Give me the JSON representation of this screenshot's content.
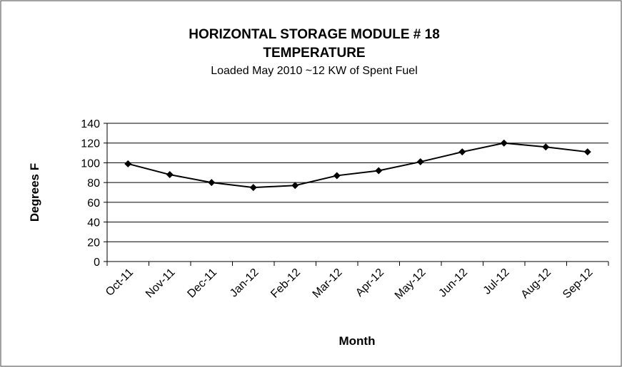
{
  "chart_data": {
    "type": "line",
    "title": [
      "HORIZONTAL STORAGE MODULE # 18",
      "TEMPERATURE"
    ],
    "subtitle": "Loaded May 2010 ~12 KW of Spent Fuel",
    "x_label": "Month",
    "y_label": "Degrees F",
    "categories": [
      "Oct-11",
      "Nov-11",
      "Dec-11",
      "Jan-12",
      "Feb-12",
      "Mar-12",
      "Apr-12",
      "May-12",
      "Jun-12",
      "Jul-12",
      "Aug-12",
      "Sep-12"
    ],
    "series": [
      {
        "color": "#000000",
        "values": [
          99,
          88,
          80,
          75,
          77,
          87,
          92,
          101,
          111,
          120,
          116,
          111
        ]
      }
    ],
    "ylim": [
      0,
      140
    ],
    "yticks": [
      0,
      20,
      40,
      60,
      80,
      100,
      120,
      140
    ],
    "grid": true
  }
}
